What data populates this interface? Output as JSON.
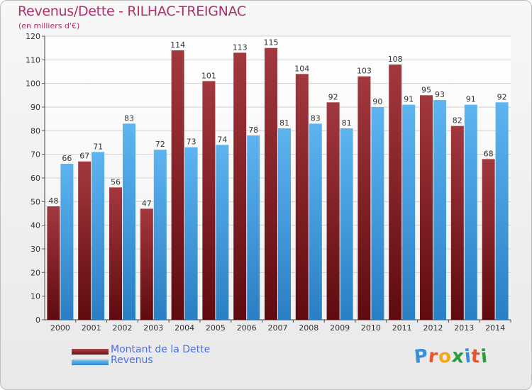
{
  "chart_data": {
    "type": "bar",
    "title": "Revenus/Dette - RILHAC-TREIGNAC",
    "subtitle": "(en milliers d'€)",
    "xlabel": "",
    "ylabel": "",
    "ylim": [
      0,
      120
    ],
    "ytick_step": 10,
    "grid": true,
    "categories": [
      "2000",
      "2001",
      "2002",
      "2003",
      "2004",
      "2005",
      "2006",
      "2007",
      "2008",
      "2009",
      "2010",
      "2011",
      "2012",
      "2013",
      "2014"
    ],
    "series": [
      {
        "name": "Montant de la Dette",
        "color": "#8b2328",
        "values": [
          48,
          67,
          56,
          47,
          114,
          101,
          113,
          115,
          104,
          92,
          103,
          108,
          95,
          82,
          68
        ]
      },
      {
        "name": "Revenus",
        "color": "#4aa3e6",
        "values": [
          66,
          71,
          83,
          72,
          73,
          74,
          78,
          81,
          83,
          81,
          90,
          91,
          93,
          91,
          92
        ]
      }
    ],
    "legend_position": "bottom-left"
  },
  "brand": {
    "letters": [
      "P",
      "r",
      "o",
      "x",
      "i",
      "t",
      "i"
    ],
    "colors": [
      "#3a8fd8",
      "#e8542b",
      "#f2a81d",
      "#2b9c3d",
      "#3a8fd8",
      "#e8542b",
      "#2b9c3d"
    ]
  }
}
